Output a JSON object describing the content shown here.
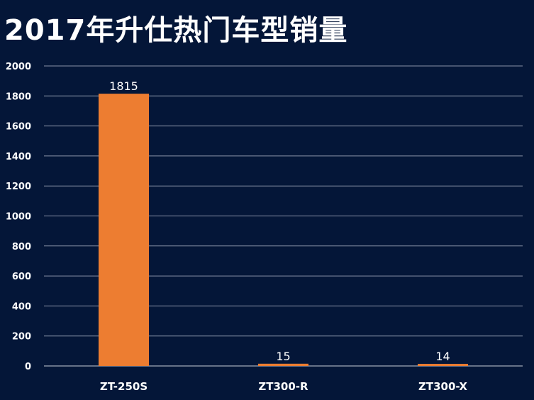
{
  "title": "2017年升仕热门车型销量",
  "colors": {
    "background": "#041638",
    "bar": "#ED7D31",
    "grid": "#8A93A8",
    "text": "#FFFFFF"
  },
  "chart_data": {
    "type": "bar",
    "title": "2017年升仕热门车型销量",
    "categories": [
      "ZT-250S",
      "ZT300-R",
      "ZT300-X"
    ],
    "values": [
      1815,
      15,
      14
    ],
    "data_labels": [
      "1815",
      "15",
      "14"
    ],
    "ylim": [
      0,
      2000
    ],
    "yticks": [
      0,
      200,
      400,
      600,
      800,
      1000,
      1200,
      1400,
      1600,
      1800,
      2000
    ],
    "xlabel": "",
    "ylabel": "",
    "grid": true,
    "legend": "none"
  }
}
